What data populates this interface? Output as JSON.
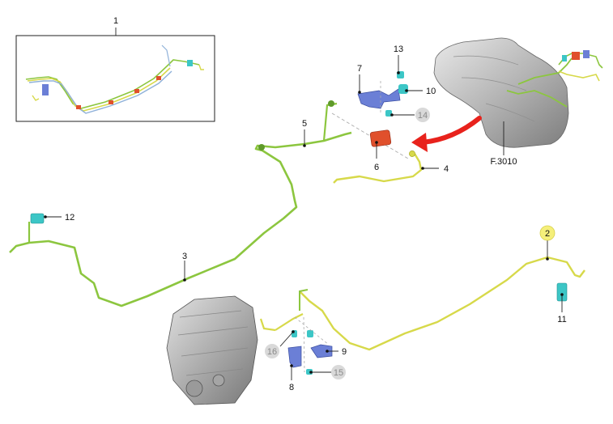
{
  "callouts": {
    "c1": "1",
    "c2": "2",
    "c3": "3",
    "c4": "4",
    "c5": "5",
    "c6": "6",
    "c7": "7",
    "c8": "8",
    "c9": "9",
    "c10": "10",
    "c11": "11",
    "c12": "12",
    "c13": "13",
    "c14": "14",
    "c15": "15",
    "c16": "16",
    "ref": "F.3010"
  },
  "colors": {
    "pipe_green": "#8cc63f",
    "pipe_green_dark": "#5f9a2a",
    "pipe_yellow": "#d7d94a",
    "pipe_yellow_dark": "#a9ab24",
    "clip_blue": "#6b7fd6",
    "connector_cyan": "#3cc6c6",
    "filter_red": "#e0502c",
    "arrow_red": "#e8221c",
    "highlight_yellow": "#f5ef7a",
    "muted_circle": "#d9d9d9",
    "metal_gray": "#b9b9b9"
  }
}
